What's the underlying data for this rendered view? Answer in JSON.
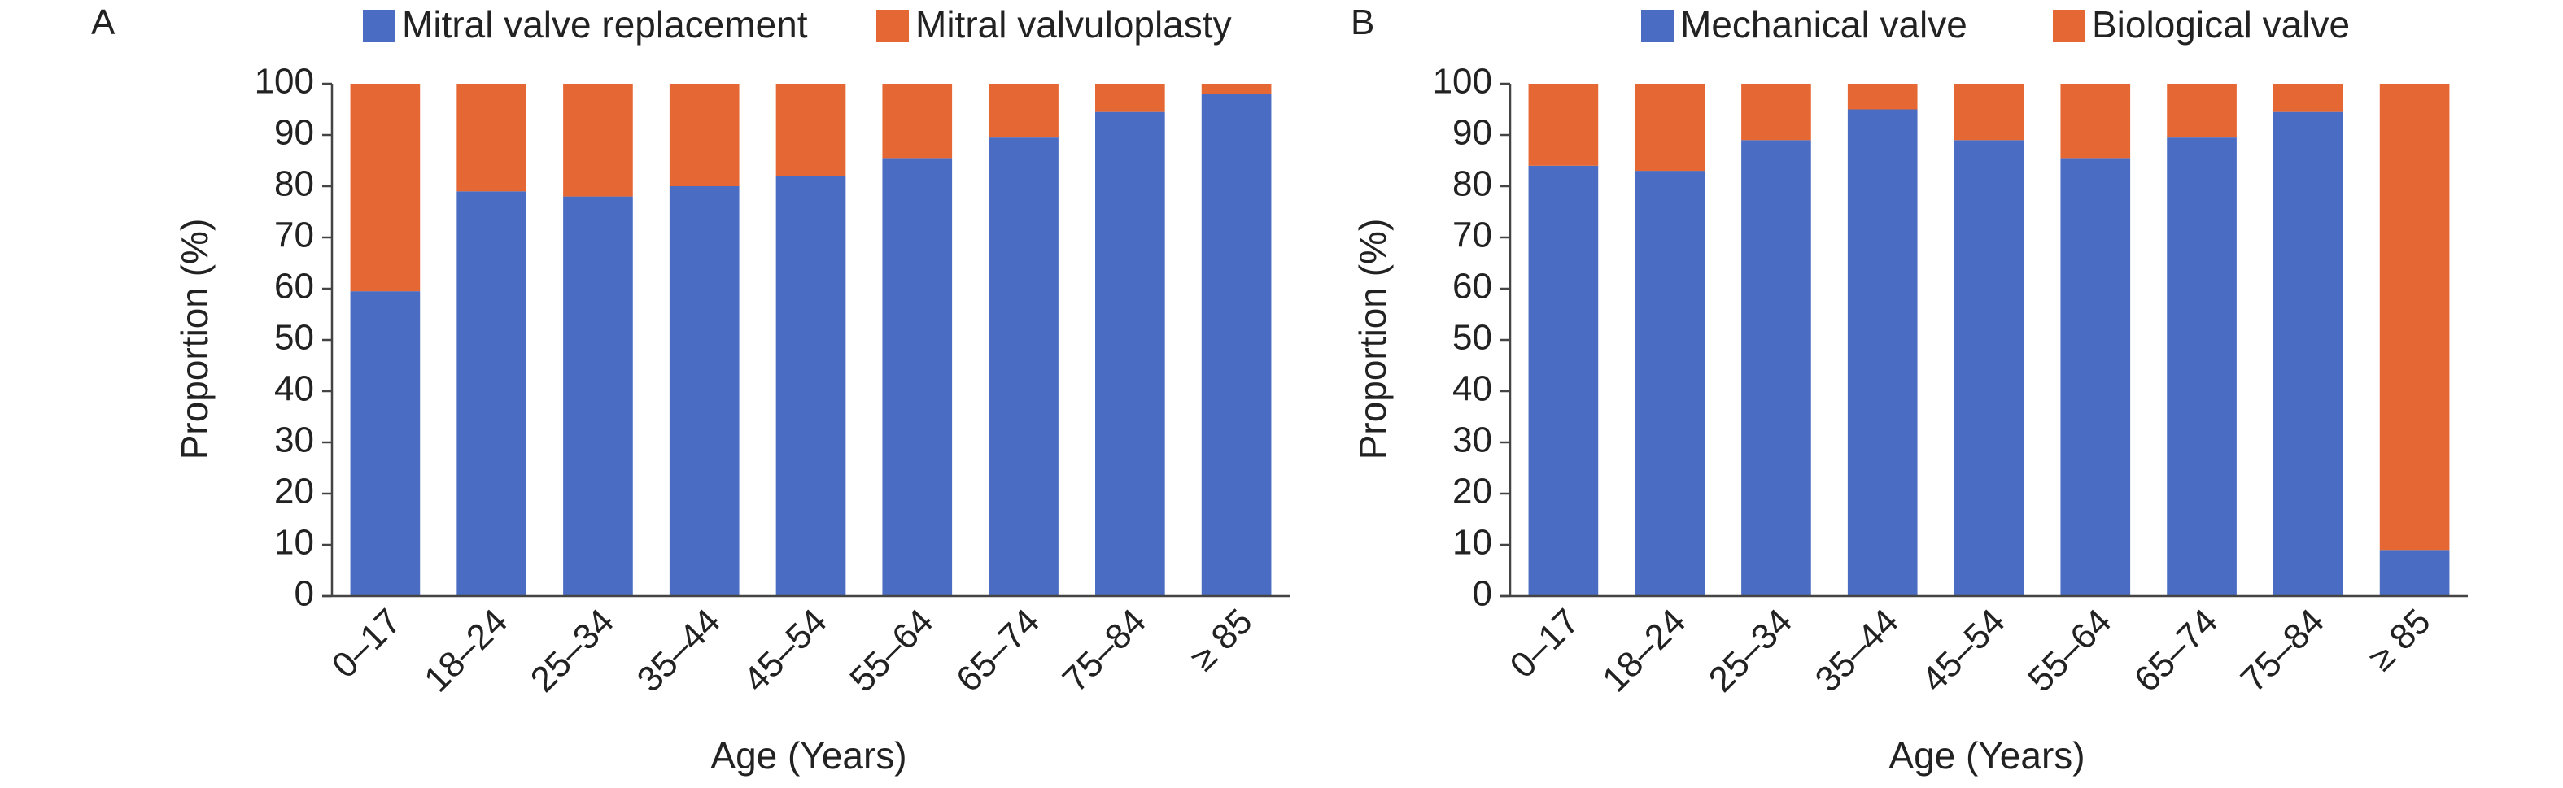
{
  "chart_data": [
    {
      "type": "bar",
      "stacked": true,
      "panel": "A",
      "categories": [
        "0–17",
        "18–24",
        "25–34",
        "35–44",
        "45–54",
        "55–64",
        "65–74",
        "75–84",
        "≥ 85"
      ],
      "series": [
        {
          "name": "Mitral valve replacement",
          "color": "#4A6CC2",
          "values": [
            59.5,
            79,
            78,
            80,
            82,
            85.5,
            89.5,
            94.5,
            98
          ]
        },
        {
          "name": "Mitral valvuloplasty",
          "color": "#E56733",
          "values": [
            40.5,
            21,
            22,
            20,
            18,
            14.5,
            10.5,
            5.5,
            2
          ]
        }
      ],
      "xlabel": "Age (Years)",
      "ylabel": "Proportion (%)",
      "yticks": [
        "0",
        "10",
        "20",
        "30",
        "40",
        "50",
        "60",
        "70",
        "80",
        "90",
        "100"
      ],
      "ylim": [
        0,
        100
      ],
      "legend_position": "top",
      "grid": false
    },
    {
      "type": "bar",
      "stacked": true,
      "panel": "B",
      "categories": [
        "0–17",
        "18–24",
        "25–34",
        "35–44",
        "45–54",
        "55–64",
        "65–74",
        "75–84",
        "≥ 85"
      ],
      "series": [
        {
          "name": "Mechanical valve",
          "color": "#4A6CC2",
          "values": [
            84,
            83,
            89,
            95,
            89,
            85.5,
            89.5,
            94.5,
            9
          ]
        },
        {
          "name": "Biological valve",
          "color": "#E56733",
          "values": [
            16,
            17,
            11,
            5,
            11,
            14.5,
            10.5,
            5.5,
            91
          ]
        }
      ],
      "xlabel": "Age (Years)",
      "ylabel": "Proportion (%)",
      "yticks": [
        "0",
        "10",
        "20",
        "30",
        "40",
        "50",
        "60",
        "70",
        "80",
        "90",
        "100"
      ],
      "ylim": [
        0,
        100
      ],
      "legend_position": "top",
      "grid": false
    }
  ]
}
